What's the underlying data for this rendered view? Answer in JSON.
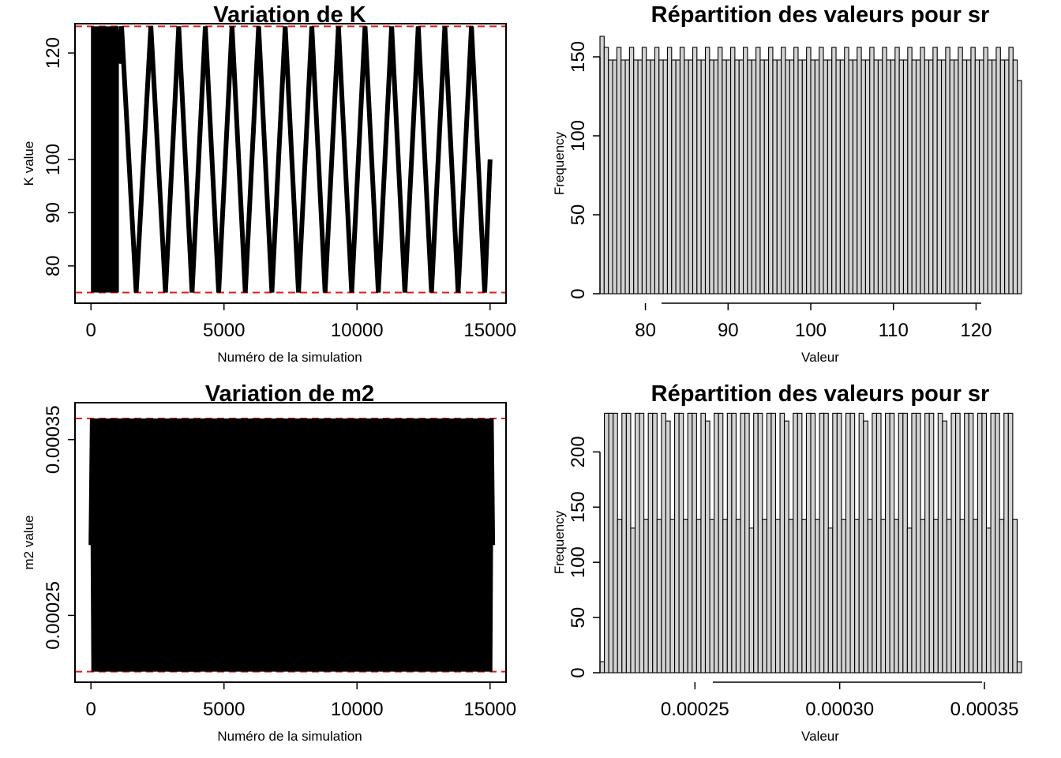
{
  "chart_data": [
    {
      "type": "line",
      "title": "Variation de K",
      "xlabel": "Numéro de la simulation",
      "ylabel": "K value",
      "xlim": [
        -600,
        15600
      ],
      "ylim": [
        73,
        125.5
      ],
      "xticks": [
        0,
        5000,
        10000,
        15000
      ],
      "xtick_labels": [
        "0",
        "5000",
        "10000",
        "15000"
      ],
      "yticks": [
        80,
        90,
        100,
        120
      ],
      "ytick_labels": [
        "80",
        "90",
        "100",
        "120"
      ],
      "ref_lines": [
        75,
        125
      ],
      "ref_color": "#e41a1c",
      "dense_band": {
        "x": [
          0,
          1050
        ],
        "y": [
          75,
          125
        ]
      },
      "series": [
        {
          "x": [
            1050,
            1150,
            1700,
            2250,
            2800,
            3300,
            3800,
            4300,
            4800,
            5300,
            5800,
            6300,
            6800,
            7300,
            7800,
            8300,
            8800,
            9300,
            9800,
            10300,
            10800,
            11300,
            11800,
            12300,
            12800,
            13300,
            13800,
            14300,
            14800,
            15000
          ],
          "values": [
            118,
            125,
            75,
            125,
            75,
            125,
            75,
            125,
            75,
            125,
            75,
            125,
            75,
            125,
            75,
            125,
            75,
            125,
            75,
            125,
            75,
            125,
            75,
            125,
            75,
            125,
            75,
            125,
            75,
            100
          ]
        }
      ],
      "line_color": "#000000"
    },
    {
      "type": "bar",
      "title": "Répartition des valeurs pour sr",
      "xlabel": "Valeur",
      "ylabel": "Frequency",
      "xlim": [
        74.5,
        125.5
      ],
      "ylim": [
        0,
        165
      ],
      "xticks": [
        80,
        90,
        100,
        110,
        120
      ],
      "xtick_labels": [
        "80",
        "90",
        "100",
        "110",
        "120"
      ],
      "yticks": [
        0,
        50,
        100,
        150
      ],
      "ytick_labels": [
        "0",
        "50",
        "100",
        "150"
      ],
      "bin_start": 75,
      "bin_width": 0.5,
      "values": [
        163,
        156,
        148,
        148,
        156,
        148,
        148,
        156,
        148,
        148,
        156,
        148,
        148,
        156,
        148,
        148,
        156,
        148,
        148,
        156,
        148,
        148,
        156,
        148,
        148,
        156,
        148,
        148,
        156,
        148,
        148,
        156,
        148,
        148,
        156,
        148,
        148,
        156,
        148,
        148,
        156,
        148,
        148,
        156,
        148,
        148,
        156,
        148,
        148,
        156,
        148,
        148,
        156,
        148,
        148,
        156,
        148,
        148,
        156,
        148,
        148,
        156,
        148,
        148,
        156,
        148,
        148,
        156,
        148,
        148,
        156,
        148,
        148,
        156,
        148,
        148,
        156,
        148,
        148,
        156,
        148,
        148,
        156,
        148,
        148,
        156,
        148,
        148,
        156,
        148,
        148,
        156,
        148,
        148,
        156,
        148,
        148,
        156,
        148,
        135
      ],
      "bar_fill": "#d3d3d3"
    },
    {
      "type": "line",
      "title": "Variation de m2",
      "xlabel": "Numéro de la simulation",
      "ylabel": "m2 value",
      "xlim": [
        -600,
        15600
      ],
      "ylim": [
        0.000212,
        0.000371
      ],
      "xticks": [
        0,
        5000,
        10000,
        15000
      ],
      "xtick_labels": [
        "0",
        "5000",
        "10000",
        "15000"
      ],
      "yticks": [
        0.00025,
        0.00035
      ],
      "ytick_labels": [
        "0.00025",
        "0.00035"
      ],
      "ref_lines": [
        0.000218,
        0.000362
      ],
      "ref_color": "#e41a1c",
      "dense_band": {
        "x": [
          2900,
          4050
        ],
        "y": [
          0.000218,
          0.000362
        ]
      },
      "series": [
        {
          "x_start": 0,
          "x_end": 15100,
          "cycles": 148,
          "start_value": 0.00029,
          "end_value": 0.00029,
          "y_min": 0.000218,
          "y_max": 0.000362
        }
      ],
      "line_color": "#000000"
    },
    {
      "type": "bar",
      "title": "Répartition des valeurs pour sr",
      "xlabel": "Valeur",
      "ylabel": "Frequency",
      "xlim": [
        0.0002172,
        0.0003628
      ],
      "ylim": [
        0,
        236
      ],
      "xticks": [
        0.00025,
        0.0003,
        0.00035
      ],
      "xtick_labels": [
        "0.00025",
        "0.00030",
        "0.00035"
      ],
      "yticks": [
        0,
        50,
        100,
        150,
        200
      ],
      "ytick_labels": [
        "0",
        "50",
        "100",
        "150",
        "200"
      ],
      "bin_start": 0.000218,
      "bin_width": 1.5e-06,
      "values": [
        10,
        235,
        235,
        235,
        139,
        235,
        235,
        131,
        235,
        235,
        139,
        235,
        235,
        139,
        235,
        228,
        139,
        235,
        235,
        139,
        235,
        235,
        139,
        235,
        228,
        139,
        235,
        235,
        139,
        235,
        235,
        139,
        235,
        235,
        131,
        235,
        235,
        139,
        235,
        235,
        139,
        235,
        228,
        139,
        235,
        235,
        139,
        235,
        235,
        139,
        235,
        235,
        131,
        235,
        235,
        139,
        235,
        235,
        139,
        235,
        228,
        139,
        235,
        235,
        139,
        235,
        235,
        139,
        235,
        235,
        131,
        235,
        235,
        139,
        235,
        235,
        139,
        235,
        228,
        139,
        235,
        235,
        139,
        235,
        235,
        139,
        235,
        235,
        131,
        235,
        235,
        139,
        235,
        235,
        139,
        10
      ],
      "bar_fill": "#d3d3d3"
    }
  ]
}
